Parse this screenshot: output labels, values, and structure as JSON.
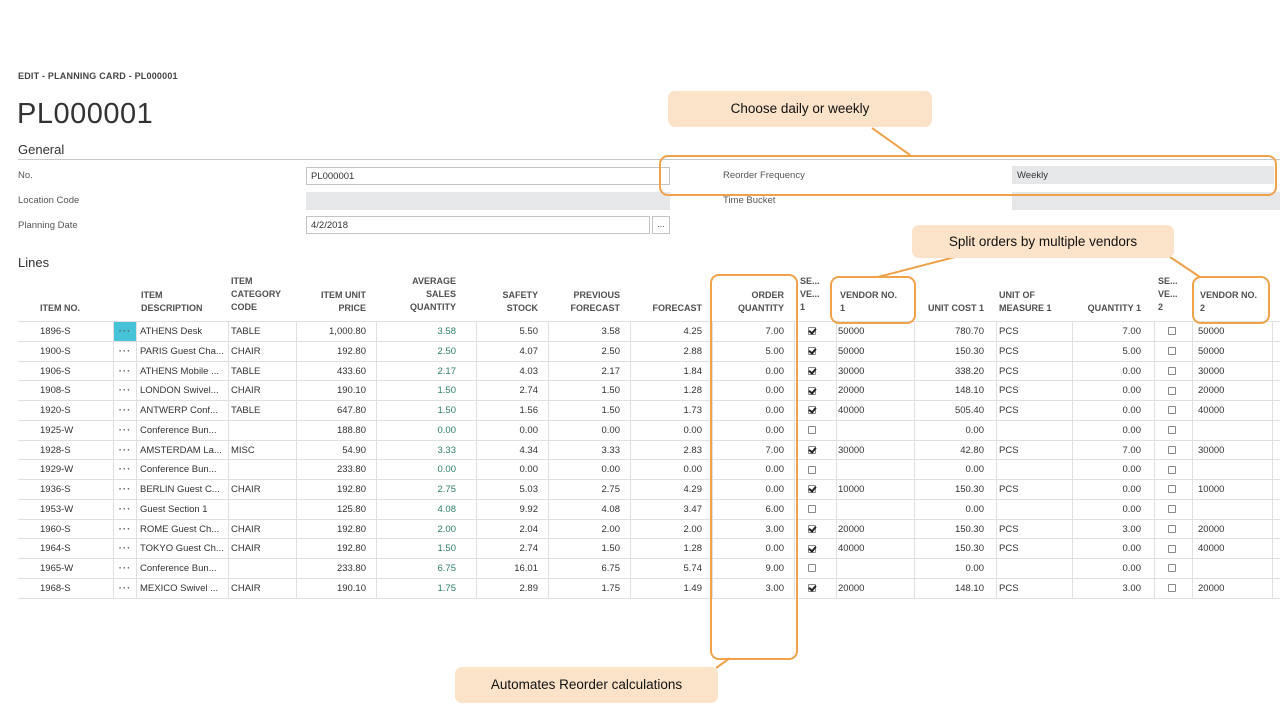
{
  "breadcrumb": "EDIT - PLANNING CARD - PL000001",
  "page_title": "PL000001",
  "general": {
    "section_title": "General",
    "no_label": "No.",
    "no_value": "PL000001",
    "location_label": "Location Code",
    "location_value": "",
    "planning_date_label": "Planning Date",
    "planning_date_value": "4/2/2018",
    "lookup_label": "...",
    "reorder_label": "Reorder Frequency",
    "reorder_value": "Weekly",
    "time_bucket_label": "Time Bucket",
    "time_bucket_value": ""
  },
  "lines": {
    "section_title": "Lines",
    "columns": {
      "item_no": "ITEM NO.",
      "item_desc_1": "ITEM",
      "item_desc_2": "DESCRIPTION",
      "cat_1": "ITEM",
      "cat_2": "CATEGORY",
      "cat_3": "CODE",
      "price_1": "ITEM UNIT",
      "price_2": "PRICE",
      "avg_1": "AVERAGE",
      "avg_2": "SALES",
      "avg_3": "QUANTITY",
      "safety_1": "SAFETY",
      "safety_2": "STOCK",
      "prev_1": "PREVIOUS",
      "prev_2": "FORECAST",
      "forecast": "FORECAST",
      "order_1": "ORDER",
      "order_2": "QUANTITY",
      "sel1_1": "SE...",
      "sel1_2": "VE...",
      "sel1_3": "1",
      "vendor1_1": "VENDOR NO.",
      "vendor1_2": "1",
      "unitcost1": "UNIT COST 1",
      "uom1_1": "UNIT OF",
      "uom1_2": "MEASURE 1",
      "qty1": "QUANTITY 1",
      "sel2_1": "SE...",
      "sel2_2": "VE...",
      "sel2_3": "2",
      "vendor2_1": "VENDOR NO.",
      "vendor2_2": "2"
    },
    "row_menu": "···",
    "rows": [
      {
        "item_no": "1896-S",
        "desc": "ATHENS Desk",
        "cat": "TABLE",
        "price": "1,000.80",
        "avg": "3.58",
        "safety": "5.50",
        "prev": "3.58",
        "forecast": "4.25",
        "order": "7.00",
        "sel1": true,
        "vendor1": "50000",
        "unitcost1": "780.70",
        "uom1": "PCS",
        "qty1": "7.00",
        "sel2": false,
        "vendor2": "50000"
      },
      {
        "item_no": "1900-S",
        "desc": "PARIS Guest Cha...",
        "cat": "CHAIR",
        "price": "192.80",
        "avg": "2.50",
        "safety": "4.07",
        "prev": "2.50",
        "forecast": "2.88",
        "order": "5.00",
        "sel1": true,
        "vendor1": "50000",
        "unitcost1": "150.30",
        "uom1": "PCS",
        "qty1": "5.00",
        "sel2": false,
        "vendor2": "50000"
      },
      {
        "item_no": "1906-S",
        "desc": "ATHENS Mobile ...",
        "cat": "TABLE",
        "price": "433.60",
        "avg": "2.17",
        "safety": "4.03",
        "prev": "2.17",
        "forecast": "1.84",
        "order": "0.00",
        "sel1": true,
        "vendor1": "30000",
        "unitcost1": "338.20",
        "uom1": "PCS",
        "qty1": "0.00",
        "sel2": false,
        "vendor2": "30000"
      },
      {
        "item_no": "1908-S",
        "desc": "LONDON Swivel...",
        "cat": "CHAIR",
        "price": "190.10",
        "avg": "1.50",
        "safety": "2.74",
        "prev": "1.50",
        "forecast": "1.28",
        "order": "0.00",
        "sel1": true,
        "vendor1": "20000",
        "unitcost1": "148.10",
        "uom1": "PCS",
        "qty1": "0.00",
        "sel2": false,
        "vendor2": "20000"
      },
      {
        "item_no": "1920-S",
        "desc": "ANTWERP Conf...",
        "cat": "TABLE",
        "price": "647.80",
        "avg": "1.50",
        "safety": "1.56",
        "prev": "1.50",
        "forecast": "1.73",
        "order": "0.00",
        "sel1": true,
        "vendor1": "40000",
        "unitcost1": "505.40",
        "uom1": "PCS",
        "qty1": "0.00",
        "sel2": false,
        "vendor2": "40000"
      },
      {
        "item_no": "1925-W",
        "desc": "Conference Bun...",
        "cat": "",
        "price": "188.80",
        "avg": "0.00",
        "safety": "0.00",
        "prev": "0.00",
        "forecast": "0.00",
        "order": "0.00",
        "sel1": false,
        "vendor1": "",
        "unitcost1": "0.00",
        "uom1": "",
        "qty1": "0.00",
        "sel2": false,
        "vendor2": ""
      },
      {
        "item_no": "1928-S",
        "desc": "AMSTERDAM La...",
        "cat": "MISC",
        "price": "54.90",
        "avg": "3.33",
        "safety": "4.34",
        "prev": "3.33",
        "forecast": "2.83",
        "order": "7.00",
        "sel1": true,
        "vendor1": "30000",
        "unitcost1": "42.80",
        "uom1": "PCS",
        "qty1": "7.00",
        "sel2": false,
        "vendor2": "30000"
      },
      {
        "item_no": "1929-W",
        "desc": "Conference Bun...",
        "cat": "",
        "price": "233.80",
        "avg": "0.00",
        "safety": "0.00",
        "prev": "0.00",
        "forecast": "0.00",
        "order": "0.00",
        "sel1": false,
        "vendor1": "",
        "unitcost1": "0.00",
        "uom1": "",
        "qty1": "0.00",
        "sel2": false,
        "vendor2": ""
      },
      {
        "item_no": "1936-S",
        "desc": "BERLIN Guest C...",
        "cat": "CHAIR",
        "price": "192.80",
        "avg": "2.75",
        "safety": "5.03",
        "prev": "2.75",
        "forecast": "4.29",
        "order": "0.00",
        "sel1": true,
        "vendor1": "10000",
        "unitcost1": "150.30",
        "uom1": "PCS",
        "qty1": "0.00",
        "sel2": false,
        "vendor2": "10000"
      },
      {
        "item_no": "1953-W",
        "desc": "Guest Section 1",
        "cat": "",
        "price": "125.80",
        "avg": "4.08",
        "safety": "9.92",
        "prev": "4.08",
        "forecast": "3.47",
        "order": "6.00",
        "sel1": false,
        "vendor1": "",
        "unitcost1": "0.00",
        "uom1": "",
        "qty1": "0.00",
        "sel2": false,
        "vendor2": ""
      },
      {
        "item_no": "1960-S",
        "desc": "ROME Guest Ch...",
        "cat": "CHAIR",
        "price": "192.80",
        "avg": "2.00",
        "safety": "2.04",
        "prev": "2.00",
        "forecast": "2.00",
        "order": "3.00",
        "sel1": true,
        "vendor1": "20000",
        "unitcost1": "150.30",
        "uom1": "PCS",
        "qty1": "3.00",
        "sel2": false,
        "vendor2": "20000"
      },
      {
        "item_no": "1964-S",
        "desc": "TOKYO Guest Ch...",
        "cat": "CHAIR",
        "price": "192.80",
        "avg": "1.50",
        "safety": "2.74",
        "prev": "1.50",
        "forecast": "1.28",
        "order": "0.00",
        "sel1": true,
        "vendor1": "40000",
        "unitcost1": "150.30",
        "uom1": "PCS",
        "qty1": "0.00",
        "sel2": false,
        "vendor2": "40000"
      },
      {
        "item_no": "1965-W",
        "desc": "Conference Bun...",
        "cat": "",
        "price": "233.80",
        "avg": "6.75",
        "safety": "16.01",
        "prev": "6.75",
        "forecast": "5.74",
        "order": "9.00",
        "sel1": false,
        "vendor1": "",
        "unitcost1": "0.00",
        "uom1": "",
        "qty1": "0.00",
        "sel2": false,
        "vendor2": ""
      },
      {
        "item_no": "1968-S",
        "desc": "MEXICO Swivel ...",
        "cat": "CHAIR",
        "price": "190.10",
        "avg": "1.75",
        "safety": "2.89",
        "prev": "1.75",
        "forecast": "1.49",
        "order": "3.00",
        "sel1": true,
        "vendor1": "20000",
        "unitcost1": "148.10",
        "uom1": "PCS",
        "qty1": "3.00",
        "sel2": false,
        "vendor2": "20000"
      }
    ]
  },
  "annotations": {
    "reorder": "Choose daily or weekly",
    "vendors": "Split orders by multiple vendors",
    "order_qty": "Automates Reorder calculations",
    "color": "#f0a24b",
    "callout_bg": "#fbe3c9"
  },
  "colors": {
    "accent_teal": "#2e7d6b",
    "selected_cell": "#46c3d7",
    "readonly_field": "#e6e7e8"
  }
}
